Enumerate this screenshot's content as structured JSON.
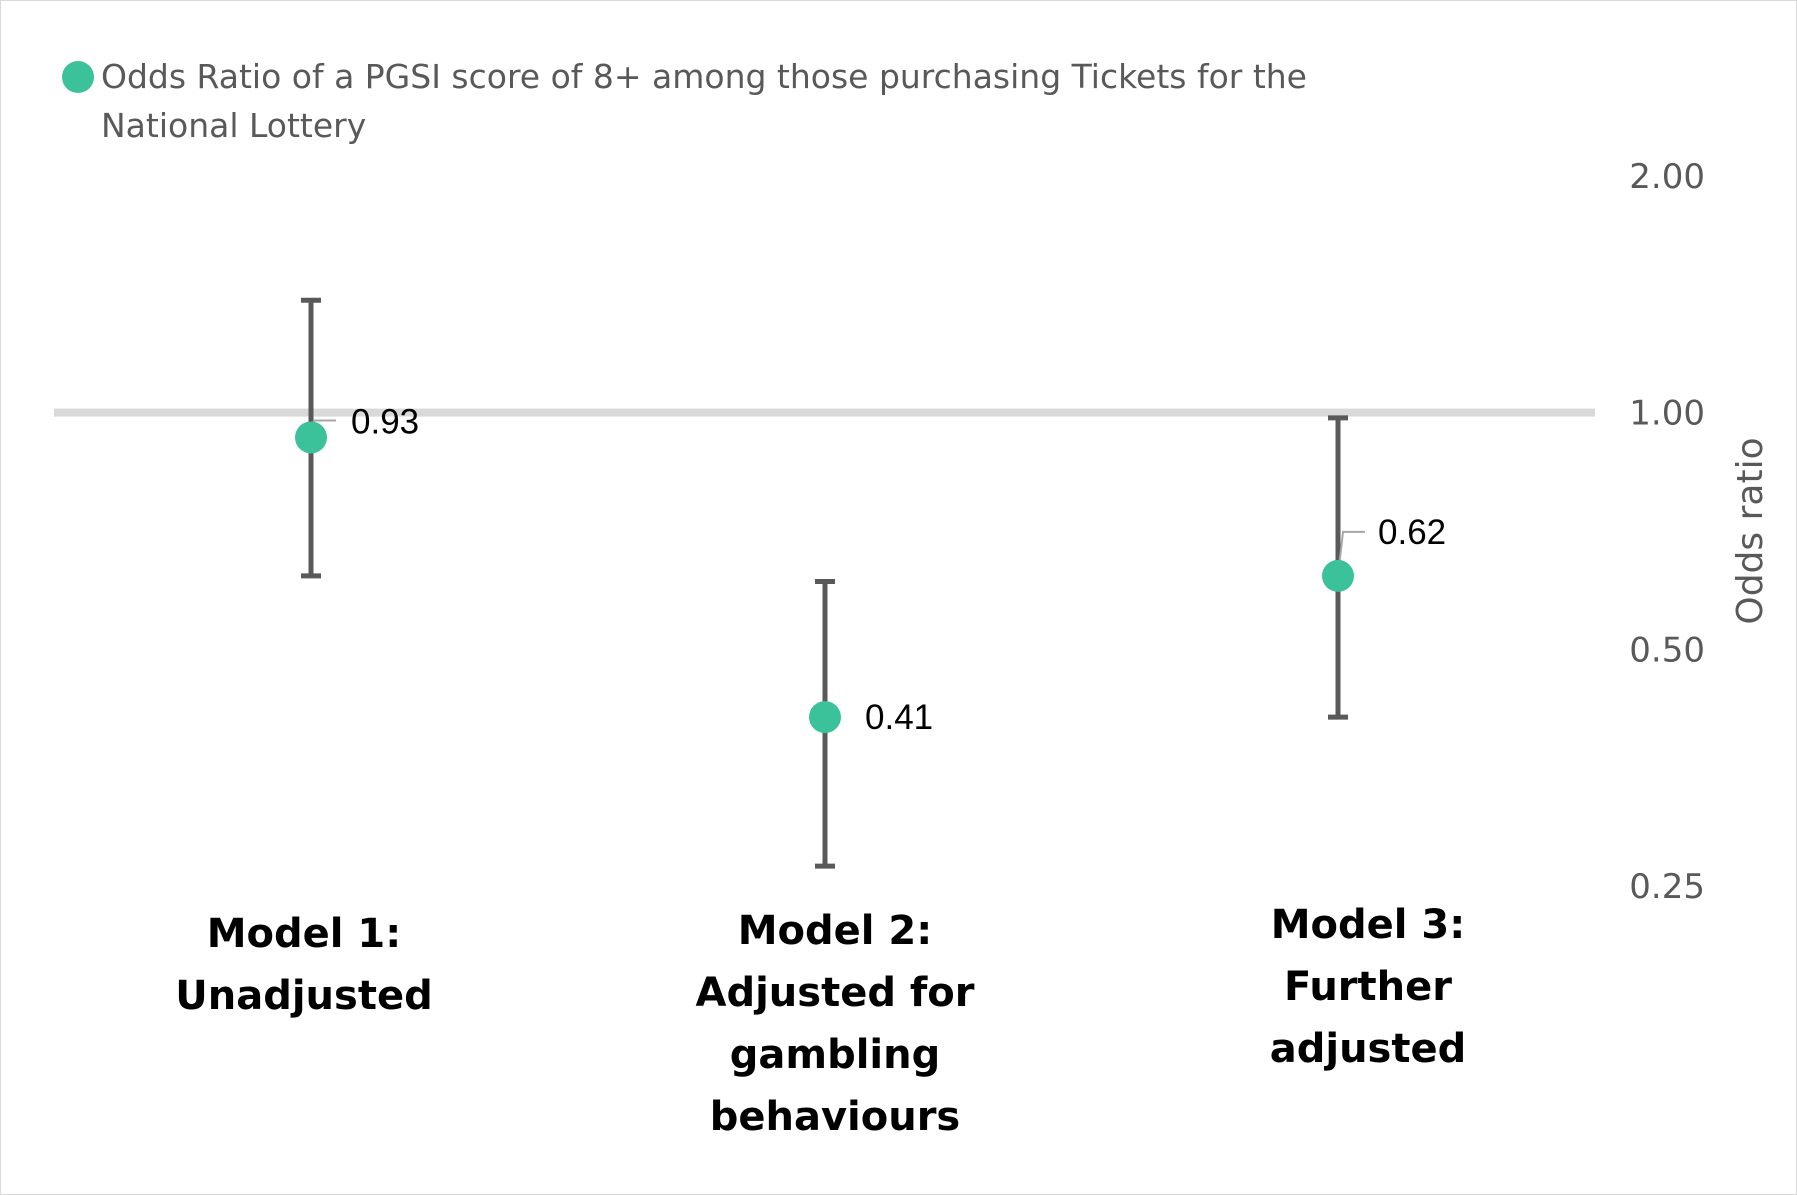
{
  "chart_data": {
    "type": "scatter",
    "y_scale": "log",
    "ylabel": "Odds ratio",
    "ylim": [
      0.25,
      2.0
    ],
    "y_ticks": [
      "0.25",
      "0.50",
      "1.00",
      "2.00"
    ],
    "reference_line": 1.0,
    "legend_position": "top-left",
    "series": [
      {
        "name": "Odds Ratio of a PGSI score of 8+ among those purchasing Tickets for the National Lottery",
        "color": "#3cc29a",
        "points": [
          {
            "category_lines": [
              "Model 1:",
              "Unadjusted"
            ],
            "value": 0.93,
            "label": "0.93",
            "ci_low": 0.62,
            "ci_high": 1.39
          },
          {
            "category_lines": [
              "Model 2:",
              "Adjusted for",
              "gambling",
              "behaviours"
            ],
            "value": 0.41,
            "label": "0.41",
            "ci_low": 0.265,
            "ci_high": 0.61
          },
          {
            "category_lines": [
              "Model 3:",
              "Further",
              "adjusted"
            ],
            "value": 0.62,
            "label": "0.62",
            "ci_low": 0.41,
            "ci_high": 0.985
          }
        ]
      }
    ]
  },
  "colors": {
    "marker": "#3cc29a",
    "error_bar": "#595959",
    "reference_line": "#d9d9d9",
    "leader_line": "#a6a6a6"
  }
}
